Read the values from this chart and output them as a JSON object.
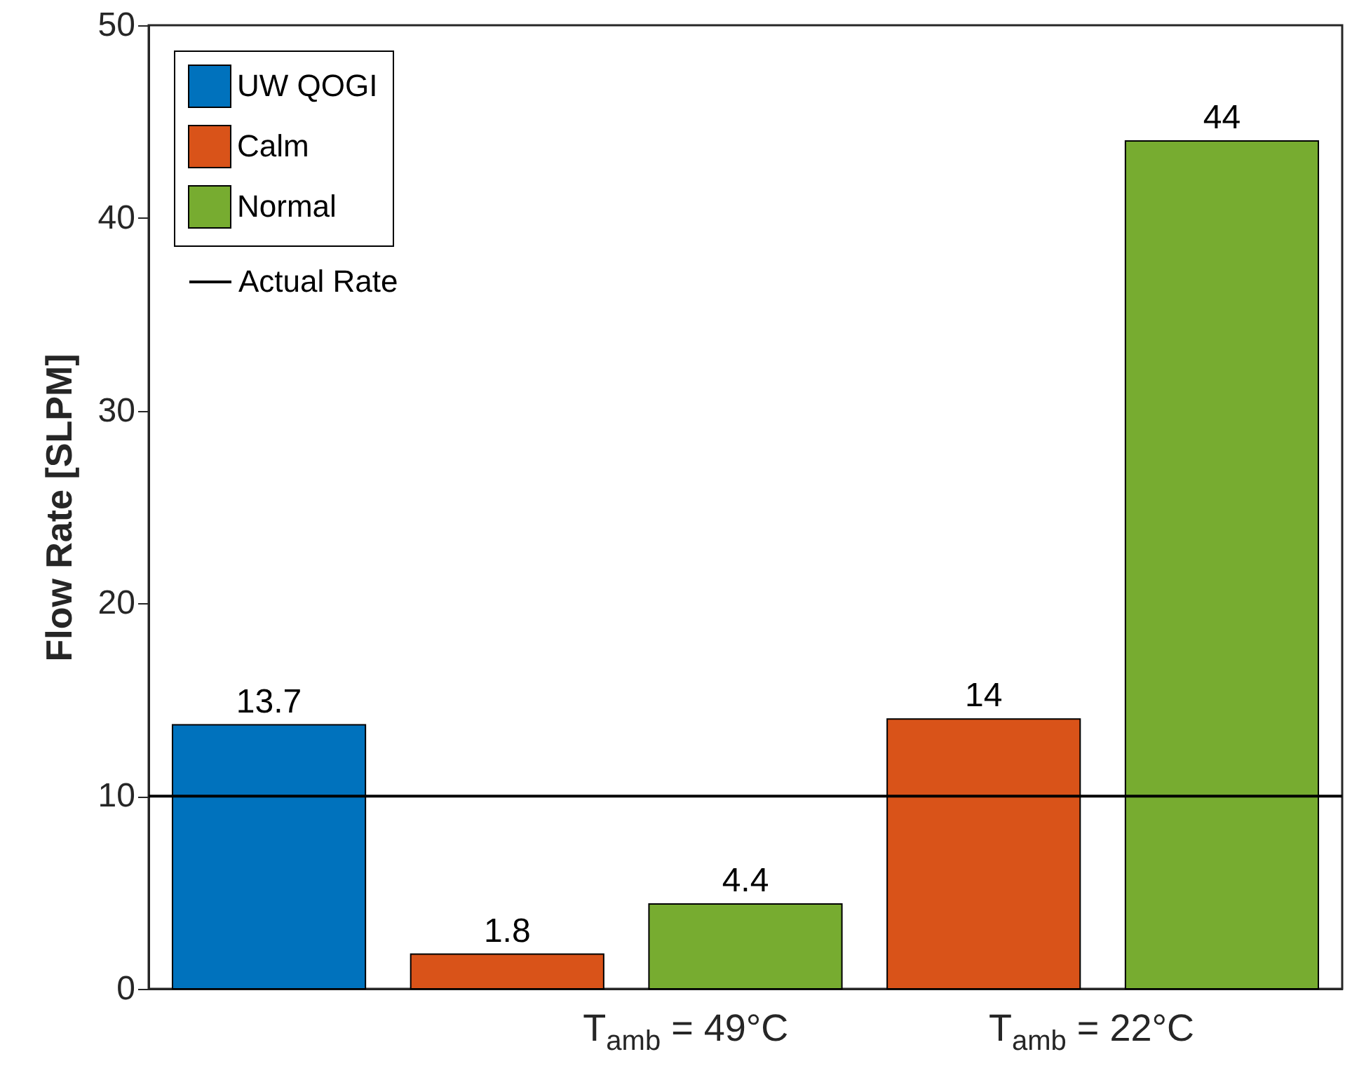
{
  "chart_data": {
    "type": "bar",
    "ylabel": "Flow Rate [SLPM]",
    "categories": [
      null,
      null,
      null,
      null,
      null
    ],
    "series": [
      {
        "name": "UW QOGI",
        "color": "#0072bd",
        "values": [
          13.7,
          null,
          null,
          null,
          null
        ]
      },
      {
        "name": "Calm",
        "color": "#d95319",
        "values": [
          null,
          1.8,
          null,
          14,
          null
        ]
      },
      {
        "name": "Normal",
        "color": "#77ac30",
        "values": [
          null,
          null,
          4.4,
          null,
          44
        ]
      }
    ],
    "ref_lines": [
      {
        "axis": "y",
        "value": 10,
        "label": "Actual Rate",
        "color": "#000000"
      }
    ],
    "ylim": [
      0,
      50
    ],
    "yticks": [
      0,
      10,
      20,
      30,
      40,
      50
    ],
    "grid": false,
    "legend": "top left",
    "data_labels": true,
    "annotations": [
      "T$_{amb}$ = 49°C",
      "T$_{amb}$ = 22°C"
    ]
  }
}
